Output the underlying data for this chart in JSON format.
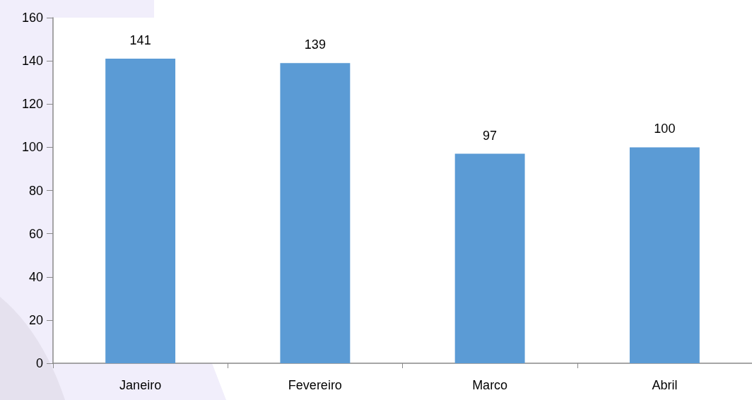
{
  "chart_data": {
    "type": "bar",
    "categories": [
      "Janeiro",
      "Fevereiro",
      "Marco",
      "Abril"
    ],
    "values": [
      141,
      139,
      97,
      100
    ],
    "color": "#5b9bd5",
    "ylim": [
      0,
      160
    ],
    "yticks": [
      0,
      20,
      40,
      60,
      80,
      100,
      120,
      140,
      160
    ],
    "grid": false,
    "data_labels": true
  }
}
